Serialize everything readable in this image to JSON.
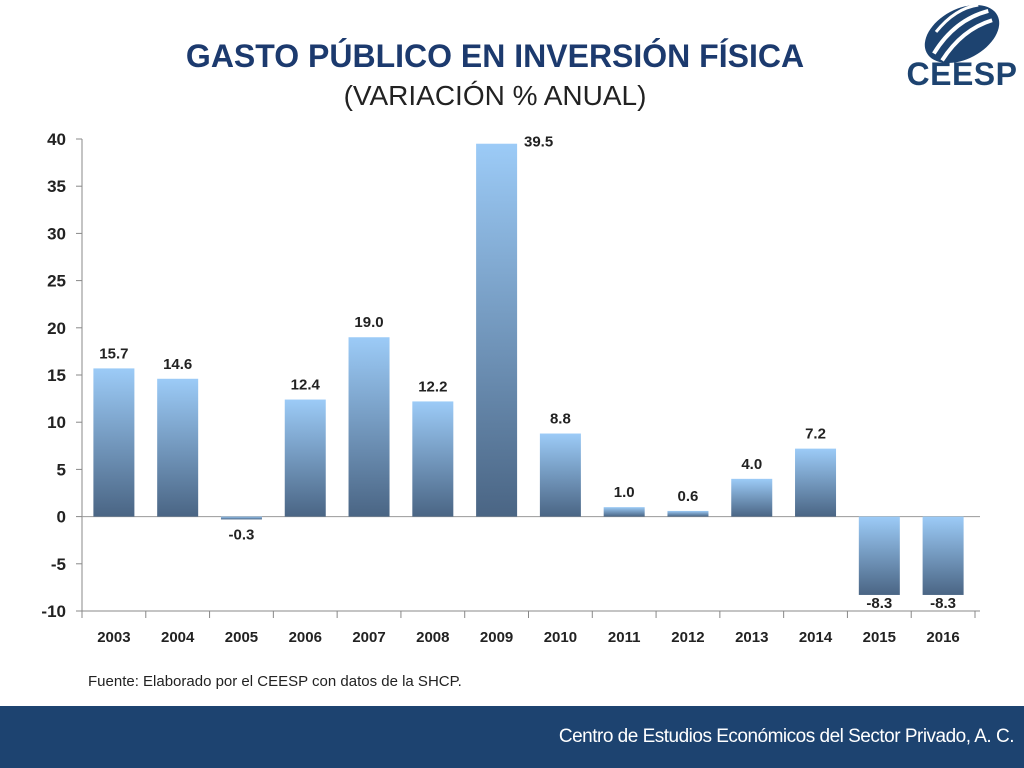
{
  "header": {
    "title": "GASTO PÚBLICO EN INVERSIÓN FÍSICA",
    "subtitle": "(VARIACIÓN % ANUAL)"
  },
  "logo": {
    "text": "CEESP",
    "color": "#1d4370"
  },
  "source": "Fuente: Elaborado por el CEESP con datos de la SHCP.",
  "footer": {
    "text": "Centro de Estudios Económicos del Sector Privado, A. C."
  },
  "colors": {
    "bar_top": "#9ccbf7",
    "bar_bottom": "#4a6584",
    "title": "#1c3a6e",
    "footer_bg": "#1d4370"
  },
  "chart_data": {
    "type": "bar",
    "title": "GASTO PÚBLICO EN INVERSIÓN FÍSICA",
    "subtitle": "(VARIACIÓN % ANUAL)",
    "categories": [
      "2003",
      "2004",
      "2005",
      "2006",
      "2007",
      "2008",
      "2009",
      "2010",
      "2011",
      "2012",
      "2013",
      "2014",
      "2015",
      "2016"
    ],
    "values": [
      15.7,
      14.6,
      -0.3,
      12.4,
      19.0,
      12.2,
      39.5,
      8.8,
      1.0,
      0.6,
      4.0,
      7.2,
      -8.3,
      -8.3
    ],
    "data_labels": [
      "15.7",
      "14.6",
      "-0.3",
      "12.4",
      "19.0",
      "12.2",
      "39.5",
      "8.8",
      "1.0",
      "0.6",
      "4.0",
      "7.2",
      "-8.3",
      "-8.3"
    ],
    "ylim": [
      -10,
      40
    ],
    "yticks": [
      "-10",
      "-5",
      "0",
      "5",
      "10",
      "15",
      "20",
      "25",
      "30",
      "35",
      "40"
    ],
    "grid": false,
    "legend": "none",
    "xlabel": "",
    "ylabel": ""
  }
}
